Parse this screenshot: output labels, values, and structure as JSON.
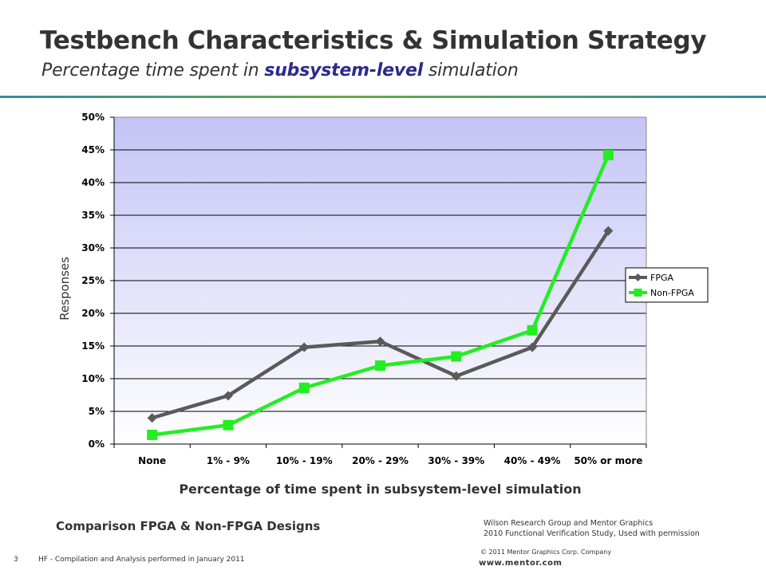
{
  "slide": {
    "title": "Testbench Characteristics & Simulation Strategy",
    "subtitle_before": "Percentage time spent in ",
    "subtitle_highlight": "subsystem-level",
    "subtitle_after": " simulation",
    "comparison": "Comparison FPGA & Non-FPGA Designs",
    "credit_line1": "Wilson Research Group and Mentor Graphics",
    "credit_line2": "2010 Functional Verification Study,  Used with permission",
    "slide_number": "3",
    "footer_note": "HF - Compilation and Analysis performed in January 2011",
    "copyright": "© 2011 Mentor Graphics Corp. Company",
    "url": "www.mentor.com"
  },
  "chart_data": {
    "type": "line",
    "categories": [
      "None",
      "1% - 9%",
      "10% - 19%",
      "20% - 29%",
      "30% - 39%",
      "40% - 49%",
      "50% or more"
    ],
    "series": [
      {
        "name": "FPGA",
        "values": [
          4,
          7.4,
          14.8,
          15.7,
          10.4,
          14.8,
          32.6
        ],
        "color": "#5a5a5a",
        "marker": "diamond"
      },
      {
        "name": "Non-FPGA",
        "values": [
          1.4,
          2.9,
          8.6,
          12,
          13.4,
          17.4,
          44.2
        ],
        "color": "#22ee22",
        "marker": "square"
      }
    ],
    "ylim": [
      0,
      50
    ],
    "yticks": [
      0,
      5,
      10,
      15,
      20,
      25,
      30,
      35,
      40,
      45,
      50
    ],
    "ytick_suffix": "%",
    "xlabel": "Percentage of time spent in subsystem-level simulation",
    "ylabel": "Responses",
    "grid": true,
    "legend": "right",
    "plot_gradient": [
      "#c4c4f6",
      "#ffffff"
    ]
  }
}
